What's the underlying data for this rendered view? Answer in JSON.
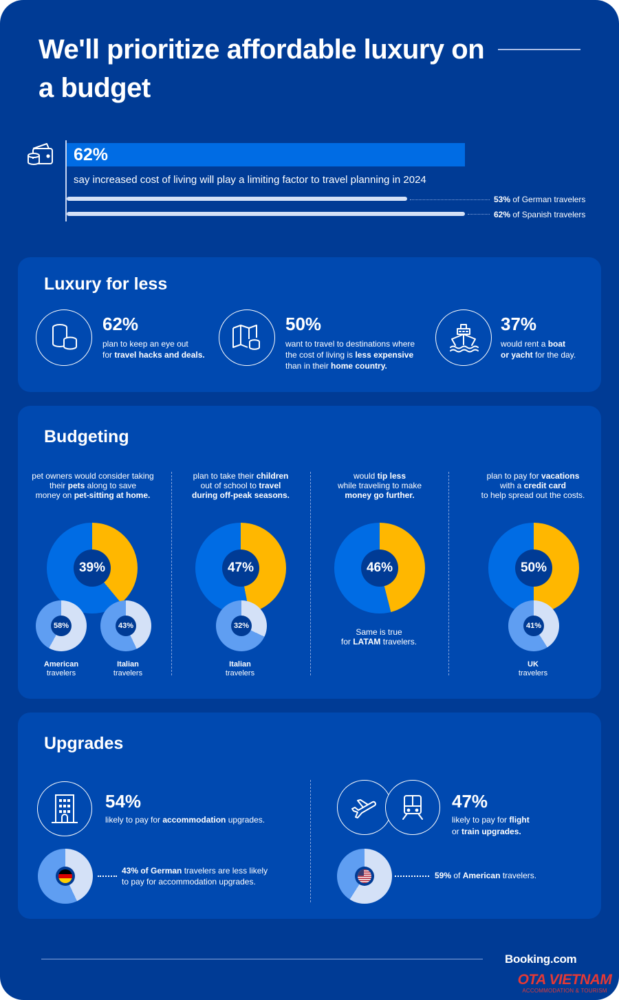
{
  "title": "We'll prioritize affordable luxury on a budget",
  "cost_of_living": {
    "pct": "62%",
    "value": 62,
    "text": "say increased cost of living will play a limiting factor to travel planning in 2024",
    "breakdown": [
      {
        "pct": "53%",
        "value": 53,
        "label": "of German travelers"
      },
      {
        "pct": "62%",
        "value": 62,
        "label": "of Spanish travelers"
      }
    ]
  },
  "luxury": {
    "title": "Luxury for less",
    "items": [
      {
        "icon": "coins-icon",
        "pct": "62%",
        "t1": "plan to keep an eye out",
        "t2": "for ",
        "t2b": "travel hacks and deals."
      },
      {
        "icon": "map-icon",
        "pct": "50%",
        "t1": "want to travel to destinations where",
        "t2": "the cost of living is ",
        "t2b": "less expensive",
        "t3": "than in their ",
        "t3b": "home country."
      },
      {
        "icon": "ship-icon",
        "pct": "37%",
        "t1": "would rent a ",
        "t1b": "boat",
        "t2b": "or yacht",
        "t2": " for the day."
      }
    ]
  },
  "budgeting": {
    "title": "Budgeting",
    "columns": [
      {
        "l1": "pet owners would consider taking",
        "l2a": "their ",
        "l2b": "pets",
        "l2c": " along to save",
        "l3a": "money on ",
        "l3b": "pet-sitting at home.",
        "main_pct": "39%",
        "main_value": 39,
        "sub": [
          {
            "pct": "58%",
            "value": 58,
            "label1": "American",
            "label2": "travelers"
          },
          {
            "pct": "43%",
            "value": 43,
            "label1": "Italian",
            "label2": "travelers"
          }
        ]
      },
      {
        "l1a": "plan to take their ",
        "l1b": "children",
        "l2a": "out of school to ",
        "l2b": "travel",
        "l3b": "during off-peak seasons.",
        "main_pct": "47%",
        "main_value": 47,
        "sub": [
          {
            "pct": "32%",
            "value": 32,
            "label1": "Italian",
            "label2": "travelers"
          }
        ]
      },
      {
        "l1a": "would ",
        "l1b": "tip less",
        "l2": "while traveling to make",
        "l3b": "money go further.",
        "main_pct": "46%",
        "main_value": 46,
        "note1": "Same is true",
        "note2a": "for ",
        "note2b": "LATAM",
        "note2c": " travelers."
      },
      {
        "l1a": "plan to pay for ",
        "l1b": "vacations",
        "l2a": "with a ",
        "l2b": "credit card",
        "l3": "to help spread out the costs.",
        "main_pct": "50%",
        "main_value": 50,
        "sub": [
          {
            "pct": "41%",
            "value": 41,
            "label1": "UK",
            "label2": "travelers"
          }
        ]
      }
    ]
  },
  "upgrades": {
    "title": "Upgrades",
    "accommodation": {
      "icon": "hotel-icon",
      "pct": "54%",
      "t1a": "likely to pay for ",
      "t1b": "accommodation",
      "t1c": " upgrades.",
      "sub_value": 43,
      "flag": "germany-flag-icon",
      "sub1a": "43% of ",
      "sub1b": "German",
      "sub1c": " travelers are less likely",
      "sub2": "to pay for accommodation upgrades."
    },
    "transport": {
      "icons": [
        "plane-icon",
        "train-icon"
      ],
      "pct": "47%",
      "t1a": "likely to pay for ",
      "t1b": "flight",
      "t2a": "or ",
      "t2b": "train upgrades.",
      "sub_value": 59,
      "flag": "usa-flag-icon",
      "sub1a": "59%",
      "sub1b": " of ",
      "sub1c": "American",
      "sub1d": " travelers."
    }
  },
  "footer": {
    "brand": "Booking.com",
    "watermark_main": "OTA VIETNAM",
    "watermark_sub": "ACCOMMODATION & TOURISM"
  },
  "colors": {
    "background": "#003b95",
    "card": "#0049b0",
    "accent_blue": "#006ce4",
    "accent_yellow": "#ffb700",
    "light_blue": "#d4e1f7"
  }
}
